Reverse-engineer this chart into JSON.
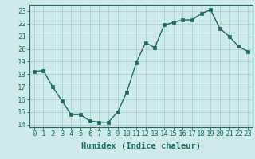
{
  "x": [
    0,
    1,
    2,
    3,
    4,
    5,
    6,
    7,
    8,
    9,
    10,
    11,
    12,
    13,
    14,
    15,
    16,
    17,
    18,
    19,
    20,
    21,
    22,
    23
  ],
  "y": [
    18.2,
    18.3,
    17.0,
    15.9,
    14.8,
    14.8,
    14.3,
    14.2,
    14.2,
    15.0,
    16.6,
    18.9,
    20.5,
    20.1,
    21.9,
    22.1,
    22.3,
    22.3,
    22.8,
    23.1,
    21.6,
    21.0,
    20.2,
    19.8
  ],
  "xlabel": "Humidex (Indice chaleur)",
  "ylim": [
    13.8,
    23.5
  ],
  "xlim": [
    -0.5,
    23.5
  ],
  "yticks": [
    14,
    15,
    16,
    17,
    18,
    19,
    20,
    21,
    22,
    23
  ],
  "xticks": [
    0,
    1,
    2,
    3,
    4,
    5,
    6,
    7,
    8,
    9,
    10,
    11,
    12,
    13,
    14,
    15,
    16,
    17,
    18,
    19,
    20,
    21,
    22,
    23
  ],
  "line_color": "#1a6b5e",
  "marker_color": "#1a6b5e",
  "bg_color": "#ceeaea",
  "grid_color": "#aacfcf",
  "axis_color": "#1a6b5e",
  "label_fontsize": 7.5,
  "tick_fontsize": 6.5
}
